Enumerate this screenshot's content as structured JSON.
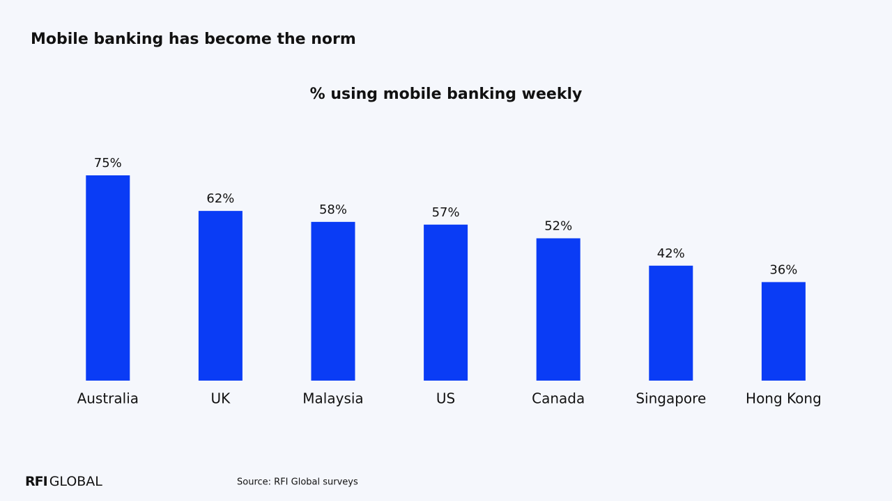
{
  "slide_title": "Mobile banking has become the norm",
  "logo": {
    "bold": "RFI",
    "regular": "GLOBAL"
  },
  "source": "Source: RFI Global surveys",
  "chart_data": {
    "type": "bar",
    "title": "% using mobile banking weekly",
    "categories": [
      "Australia",
      "UK",
      "Malaysia",
      "US",
      "Canada",
      "Singapore",
      "Hong Kong"
    ],
    "values": [
      75,
      62,
      58,
      57,
      52,
      42,
      36
    ],
    "value_labels": [
      "75%",
      "62%",
      "58%",
      "57%",
      "52%",
      "42%",
      "36%"
    ],
    "color": "#0a3cf5"
  }
}
